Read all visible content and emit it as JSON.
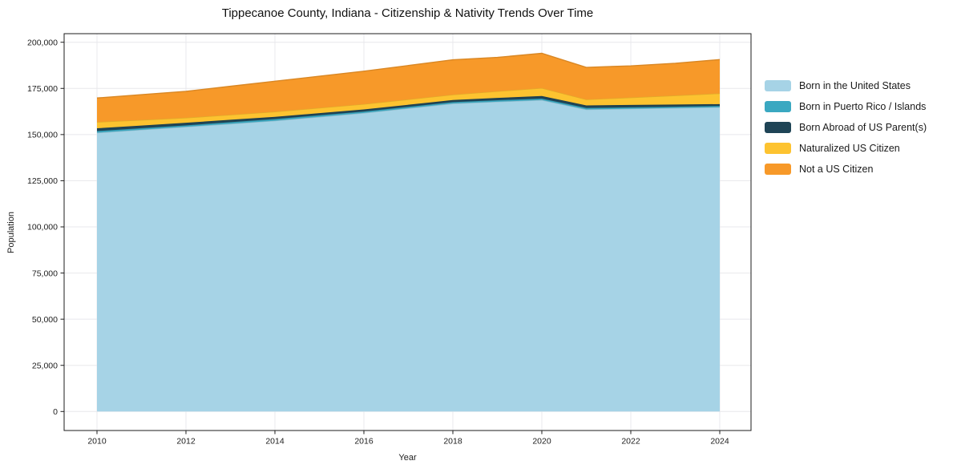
{
  "page": {
    "background": "#ffffff"
  },
  "chart_data": {
    "type": "area",
    "stacked": true,
    "title": "Tippecanoe County, Indiana - Citizenship & Nativity Trends Over Time",
    "xlabel": "Year",
    "ylabel": "Population",
    "x": [
      2010,
      2011,
      2012,
      2013,
      2014,
      2015,
      2016,
      2017,
      2018,
      2019,
      2020,
      2021,
      2022,
      2023,
      2024
    ],
    "series": [
      {
        "name": "Born in the United States",
        "color": "#a6d3e6",
        "values": [
          151000,
          152600,
          154200,
          155850,
          157500,
          159600,
          161700,
          164250,
          166800,
          167800,
          168700,
          163600,
          164000,
          164400,
          164800
        ]
      },
      {
        "name": "Born in Puerto Rico / Islands",
        "color": "#3aa8c1",
        "values": [
          900,
          850,
          800,
          850,
          900,
          850,
          800,
          800,
          800,
          800,
          800,
          800,
          750,
          700,
          700
        ]
      },
      {
        "name": "Born Abroad of US Parent(s)",
        "color": "#1f4456",
        "values": [
          1500,
          1450,
          1400,
          1300,
          1200,
          1150,
          1100,
          1100,
          1100,
          1250,
          1400,
          1400,
          1300,
          1150,
          1000
        ]
      },
      {
        "name": "Naturalized US Citizen",
        "color": "#fdc330",
        "values": [
          3400,
          3000,
          2700,
          2700,
          2800,
          2850,
          2900,
          2900,
          2900,
          3600,
          4300,
          3200,
          4000,
          4900,
          5800
        ]
      },
      {
        "name": "Not a US Citizen",
        "color": "#f79929",
        "values": [
          13000,
          13700,
          14300,
          15450,
          16500,
          17150,
          17800,
          18350,
          18900,
          18350,
          18800,
          17400,
          17150,
          17450,
          18300
        ]
      }
    ],
    "totals": [
      169800,
      171600,
      173400,
      176150,
      178900,
      181600,
      184300,
      187400,
      190500,
      191800,
      194000,
      186400,
      187200,
      188600,
      190600
    ],
    "ylim": [
      0,
      200000
    ],
    "yticks": [
      0,
      25000,
      50000,
      75000,
      100000,
      125000,
      150000,
      175000,
      200000
    ],
    "ytick_labels": [
      "0",
      "25,000",
      "50,000",
      "75,000",
      "100,000",
      "125,000",
      "150,000",
      "175,000",
      "200,000"
    ],
    "xticks": [
      2010,
      2012,
      2014,
      2016,
      2018,
      2020,
      2022,
      2024
    ],
    "xtick_labels": [
      "2010",
      "2012",
      "2014",
      "2016",
      "2018",
      "2020",
      "2022",
      "2024"
    ],
    "grid": true,
    "grid_color": "#e8e8ec",
    "axis_color": "#1c1c1c",
    "legend_position": "right-outside"
  }
}
